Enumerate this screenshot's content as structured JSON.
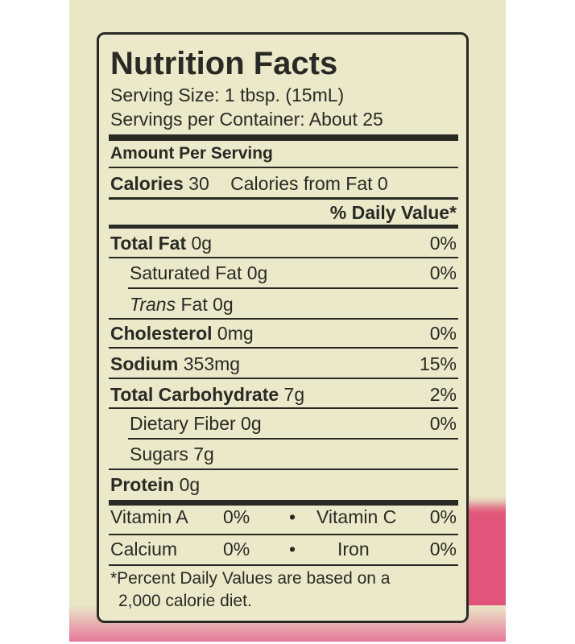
{
  "title": "Nutrition Facts",
  "serving_size": "Serving Size: 1 tbsp. (15mL)",
  "servings_per_container": "Servings per Container:  About 25",
  "amount_per_serving": "Amount Per Serving",
  "calories": {
    "label": "Calories",
    "value": "30",
    "from_fat": "Calories from Fat 0"
  },
  "dv_header": "% Daily Value*",
  "nutrients": [
    {
      "label": "Total Fat",
      "amount": "0g",
      "dv": "0%"
    },
    {
      "label": "Saturated Fat 0g",
      "dv": "0%"
    },
    {
      "label_italic": "Trans",
      "label": "Fat 0g"
    },
    {
      "label": "Cholesterol",
      "amount": "0mg",
      "dv": "0%"
    },
    {
      "label": "Sodium",
      "amount": "353mg",
      "dv": "15%"
    },
    {
      "label": "Total Carbohydrate",
      "amount": "7g",
      "dv": "2%"
    },
    {
      "label": "Dietary Fiber 0g",
      "dv": "0%"
    },
    {
      "label": "Sugars 7g"
    },
    {
      "label": "Protein",
      "amount": "0g"
    }
  ],
  "vitamins": [
    {
      "a_label": "Vitamin A",
      "a_dv": "0%",
      "bullet": "•",
      "b_label": "Vitamin C",
      "b_dv": "0%"
    },
    {
      "a_label": "Calcium",
      "a_dv": "0%",
      "bullet": "•",
      "b_label": "Iron",
      "b_dv": "0%"
    }
  ],
  "footnote_1": "*Percent Daily Values are based on a",
  "footnote_2": "2,000 calorie diet.",
  "colors": {
    "label_bg": "#ebe9c9",
    "ink": "#2a2a25",
    "package_pink": "#e2557a"
  }
}
